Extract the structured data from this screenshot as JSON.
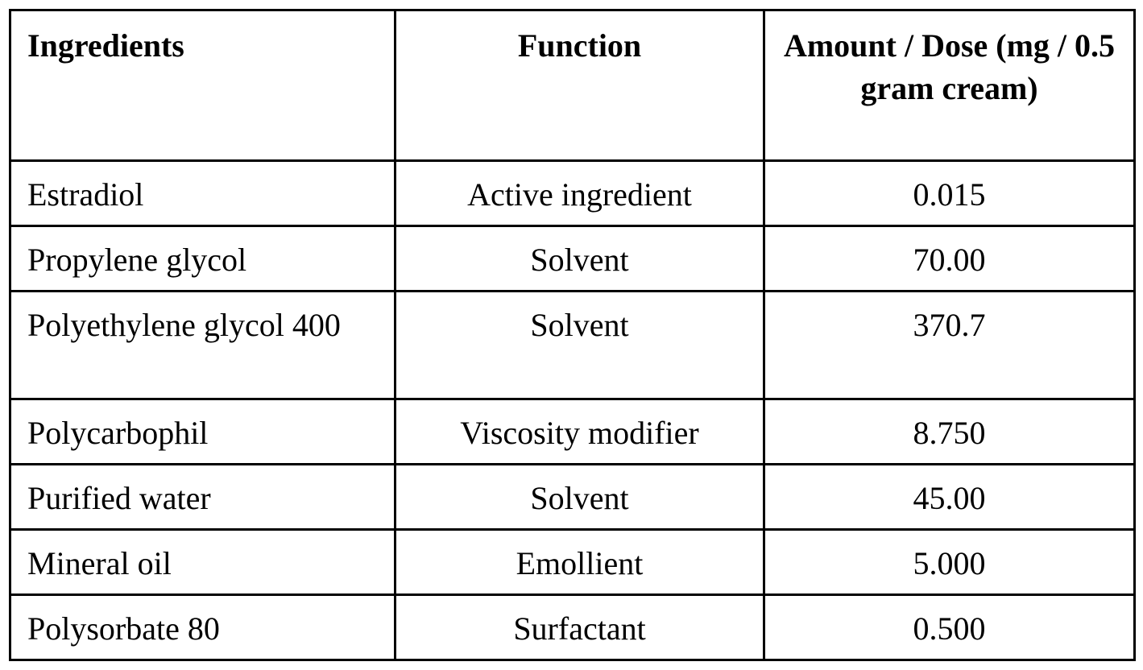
{
  "table": {
    "headers": {
      "ingredients": "Ingredients",
      "function": "Function",
      "amount": "Amount / Dose (mg / 0.5 gram cream)"
    },
    "rows": [
      {
        "ingredient": "Estradiol",
        "function": "Active ingredient",
        "amount": "0.015"
      },
      {
        "ingredient": "Propylene glycol",
        "function": "Solvent",
        "amount": "70.00"
      },
      {
        "ingredient": "Polyethylene glycol 400",
        "function": "Solvent",
        "amount": "370.7"
      },
      {
        "ingredient": "Polycarbophil",
        "function": "Viscosity modifier",
        "amount": "8.750"
      },
      {
        "ingredient": "Purified water",
        "function": "Solvent",
        "amount": "45.00"
      },
      {
        "ingredient": "Mineral oil",
        "function": "Emollient",
        "amount": "5.000"
      },
      {
        "ingredient": "Polysorbate 80",
        "function": "Surfactant",
        "amount": "0.500"
      }
    ]
  }
}
